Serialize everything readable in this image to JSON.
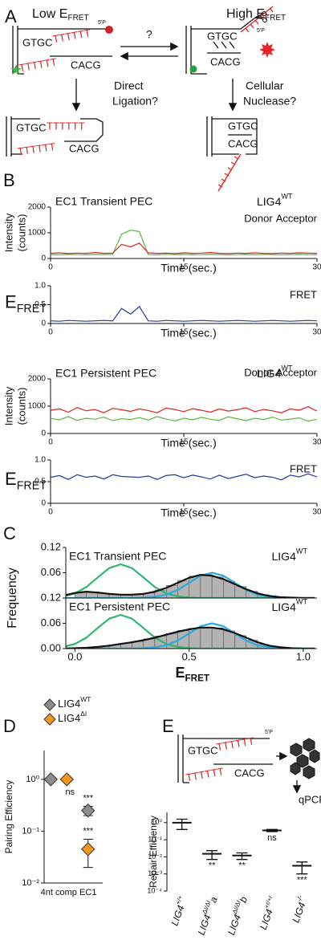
{
  "figure": {
    "panels": {
      "a": {
        "label": "A",
        "low": {
          "text": "Low E",
          "sub": "FRET"
        },
        "high": {
          "text": "High E",
          "sub": "FRET"
        },
        "question": "?",
        "seq_top": "GTGC",
        "seq_tail": "TTTTTT",
        "seq_bottom": "CACG",
        "phosphate": "5'P",
        "left_outcome": [
          "Direct",
          "Ligation?"
        ],
        "right_outcome": [
          "Cellular",
          "Nuclease?"
        ]
      },
      "b": {
        "label": "B"
      },
      "c": {
        "label": "C"
      },
      "d": {
        "label": "D"
      },
      "e": {
        "label": "E",
        "seq_top": "GTGC",
        "seq_tail": "TTTTTT",
        "seq_bottom": "CACG",
        "phosphate": "5'P",
        "assay": "qPCR"
      }
    }
  },
  "chart_data": [
    {
      "type": "trace",
      "title": "EC1 Transient PEC",
      "construct": "LIG4",
      "construct_sup": "WT",
      "y_label": [
        "Intensity",
        "(counts)"
      ],
      "x_label": "Time (sec.)",
      "x": [
        0,
        1,
        2,
        3,
        4,
        5,
        6,
        7,
        8,
        9,
        10,
        11,
        12,
        13,
        14,
        15,
        16,
        17,
        18,
        19,
        20,
        21,
        22,
        23,
        24,
        25,
        26,
        27,
        28,
        29,
        30
      ],
      "xlim": [
        0,
        30
      ],
      "xticks": [
        0,
        15,
        30
      ],
      "ylim": [
        0,
        2000
      ],
      "yticks": [
        0,
        1000,
        2000
      ],
      "series": [
        {
          "name": "Donor",
          "color": "#5cb83c",
          "values": [
            150,
            140,
            160,
            150,
            145,
            155,
            150,
            160,
            950,
            1100,
            1050,
            150,
            140,
            160,
            150,
            155,
            145,
            150,
            160,
            150,
            140,
            150,
            155,
            145,
            160,
            150,
            140,
            150,
            155,
            150,
            145
          ]
        },
        {
          "name": "Acceptor",
          "color": "#e02020",
          "values": [
            200,
            220,
            190,
            210,
            200,
            230,
            200,
            210,
            550,
            450,
            600,
            220,
            200,
            210,
            190,
            220,
            200,
            210,
            230,
            200,
            190,
            210,
            200,
            220,
            200,
            190,
            210,
            200,
            220,
            210,
            200
          ]
        }
      ]
    },
    {
      "type": "trace",
      "y_label": "E",
      "y_label_sub": "FRET",
      "x_label": "Time (sec.)",
      "x": [
        0,
        1,
        2,
        3,
        4,
        5,
        6,
        7,
        8,
        9,
        10,
        11,
        12,
        13,
        14,
        15,
        16,
        17,
        18,
        19,
        20,
        21,
        22,
        23,
        24,
        25,
        26,
        27,
        28,
        29,
        30
      ],
      "xlim": [
        0,
        30
      ],
      "xticks": [
        0,
        15,
        30
      ],
      "ylim": [
        0,
        1
      ],
      "yticks": [
        0,
        0.5,
        {
          "value": 1,
          "label": "1.0"
        }
      ],
      "series": [
        {
          "name": "FRET",
          "color": "#2b3a9c",
          "values": [
            0.07,
            0.06,
            0.08,
            0.07,
            0.06,
            0.07,
            0.08,
            0.07,
            0.4,
            0.25,
            0.45,
            0.07,
            0.06,
            0.08,
            0.07,
            0.06,
            0.07,
            0.08,
            0.07,
            0.06,
            0.07,
            0.08,
            0.07,
            0.06,
            0.07,
            0.08,
            0.07,
            0.06,
            0.07,
            0.08,
            0.07
          ]
        }
      ]
    },
    {
      "type": "trace",
      "title": "EC1 Persistent PEC",
      "construct": "LIG4",
      "construct_sup": "WT",
      "y_label": [
        "Intensity",
        "(counts)"
      ],
      "x_label": "Time (sec.)",
      "x": [
        0,
        1,
        2,
        3,
        4,
        5,
        6,
        7,
        8,
        9,
        10,
        11,
        12,
        13,
        14,
        15,
        16,
        17,
        18,
        19,
        20,
        21,
        22,
        23,
        24,
        25,
        26,
        27,
        28,
        29,
        30
      ],
      "xlim": [
        0,
        30
      ],
      "xticks": [
        0,
        15,
        30
      ],
      "ylim": [
        0,
        2000
      ],
      "yticks": [
        0,
        1000,
        2000
      ],
      "series": [
        {
          "name": "Donor",
          "color": "#5cb83c",
          "values": [
            550,
            500,
            620,
            480,
            560,
            520,
            600,
            470,
            540,
            510,
            580,
            490,
            620,
            530,
            460,
            560,
            500,
            590,
            520,
            480,
            610,
            540,
            470,
            560,
            510,
            600,
            490,
            530,
            570,
            450,
            520
          ]
        },
        {
          "name": "Acceptor",
          "color": "#e02020",
          "values": [
            850,
            900,
            780,
            950,
            830,
            880,
            760,
            920,
            870,
            810,
            900,
            840,
            760,
            930,
            880,
            800,
            910,
            850,
            780,
            900,
            820,
            870,
            940,
            800,
            880,
            830,
            760,
            900,
            850,
            980,
            820
          ]
        }
      ]
    },
    {
      "type": "trace",
      "y_label": "E",
      "y_label_sub": "FRET",
      "x_label": "Time (sec.)",
      "x": [
        0,
        1,
        2,
        3,
        4,
        5,
        6,
        7,
        8,
        9,
        10,
        11,
        12,
        13,
        14,
        15,
        16,
        17,
        18,
        19,
        20,
        21,
        22,
        23,
        24,
        25,
        26,
        27,
        28,
        29,
        30
      ],
      "xlim": [
        0,
        30
      ],
      "xticks": [
        0,
        15,
        30
      ],
      "ylim": [
        0,
        1
      ],
      "yticks": [
        0,
        0.5,
        {
          "value": 1,
          "label": "1.0"
        }
      ],
      "series": [
        {
          "name": "FRET",
          "color": "#2b3a9c",
          "values": [
            0.6,
            0.64,
            0.55,
            0.66,
            0.6,
            0.63,
            0.56,
            0.66,
            0.62,
            0.61,
            0.6,
            0.63,
            0.55,
            0.64,
            0.66,
            0.59,
            0.65,
            0.61,
            0.56,
            0.65,
            0.57,
            0.62,
            0.67,
            0.59,
            0.63,
            0.6,
            0.54,
            0.65,
            0.61,
            0.68,
            0.61
          ]
        }
      ]
    },
    {
      "type": "histogram",
      "title": "EC1 Transient PEC",
      "construct": "LIG4",
      "construct_sup": "WT",
      "y_label": "Frequency",
      "bins": [
        0,
        0.05,
        0.1,
        0.15,
        0.2,
        0.25,
        0.3,
        0.35,
        0.4,
        0.45,
        0.5,
        0.55,
        0.6,
        0.65,
        0.7,
        0.75,
        0.8,
        0.85,
        0.9,
        0.95,
        1
      ],
      "counts": [
        0.014,
        0.014,
        0.011,
        0.009,
        0.008,
        0.009,
        0.012,
        0.019,
        0.03,
        0.042,
        0.052,
        0.056,
        0.05,
        0.04,
        0.027,
        0.016,
        0.008,
        0.003,
        0.001,
        0
      ],
      "bar_color": "#b3b3b3",
      "curve_x": [
        -0.1,
        -0.05,
        0,
        0.05,
        0.1,
        0.15,
        0.2,
        0.25,
        0.3,
        0.35,
        0.4,
        0.45,
        0.5,
        0.55,
        0.6,
        0.65,
        0.7,
        0.75,
        0.8,
        0.85,
        0.9,
        0.95,
        1,
        1.05
      ],
      "curves": [
        {
          "color": "#2bb673",
          "values": [
            0.001,
            0.004,
            0.011,
            0.026,
            0.049,
            0.071,
            0.08,
            0.071,
            0.049,
            0.026,
            0.011,
            0.004,
            0.001,
            0,
            0,
            0,
            0,
            0,
            0,
            0,
            0,
            0,
            0,
            0
          ]
        },
        {
          "color": "#29abe2",
          "values": [
            0,
            0,
            0,
            0,
            0,
            0,
            0,
            0,
            0.001,
            0.003,
            0.008,
            0.019,
            0.036,
            0.053,
            0.06,
            0.053,
            0.036,
            0.019,
            0.008,
            0.003,
            0.001,
            0,
            0,
            0
          ]
        },
        {
          "color": "#111111",
          "values": [
            0.002,
            0.006,
            0.012,
            0.015,
            0.013,
            0.01,
            0.008,
            0.008,
            0.01,
            0.015,
            0.024,
            0.036,
            0.048,
            0.055,
            0.053,
            0.045,
            0.033,
            0.021,
            0.011,
            0.005,
            0.002,
            0.001,
            0,
            0
          ]
        }
      ],
      "xlim": [
        -0.04,
        1.06
      ],
      "ylim": [
        0,
        0.12
      ],
      "yticks": [
        {
          "value": 0.06,
          "label": "0.06"
        },
        {
          "value": 0.12,
          "label": "0.12"
        }
      ]
    },
    {
      "type": "histogram",
      "title": "EC1 Persistent PEC",
      "construct": "LIG4",
      "construct_sup": "WT",
      "x_label": "E",
      "x_label_sub": "FRET",
      "bins": [
        0,
        0.05,
        0.1,
        0.15,
        0.2,
        0.25,
        0.3,
        0.35,
        0.4,
        0.45,
        0.5,
        0.55,
        0.6,
        0.65,
        0.7,
        0.75,
        0.8,
        0.85,
        0.9,
        0.95,
        1
      ],
      "counts": [
        0.001,
        0.003,
        0.005,
        0.009,
        0.013,
        0.017,
        0.023,
        0.03,
        0.036,
        0.043,
        0.048,
        0.05,
        0.049,
        0.042,
        0.031,
        0.02,
        0.01,
        0.004,
        0.002,
        0.001
      ],
      "bar_color": "#b3b3b3",
      "curve_x": [
        -0.1,
        -0.05,
        0,
        0.05,
        0.1,
        0.15,
        0.2,
        0.25,
        0.3,
        0.35,
        0.4,
        0.45,
        0.5,
        0.55,
        0.6,
        0.65,
        0.7,
        0.75,
        0.8,
        0.85,
        0.9,
        0.95,
        1,
        1.05
      ],
      "curves": [
        {
          "color": "#2bb673",
          "values": [
            0.001,
            0.004,
            0.011,
            0.026,
            0.049,
            0.071,
            0.08,
            0.071,
            0.049,
            0.026,
            0.011,
            0.004,
            0.001,
            0,
            0,
            0,
            0,
            0,
            0,
            0,
            0,
            0,
            0,
            0
          ]
        },
        {
          "color": "#29abe2",
          "values": [
            0,
            0,
            0,
            0,
            0,
            0,
            0,
            0,
            0.001,
            0.003,
            0.008,
            0.019,
            0.036,
            0.053,
            0.06,
            0.053,
            0.036,
            0.019,
            0.008,
            0.003,
            0.001,
            0,
            0,
            0
          ]
        },
        {
          "color": "#111111",
          "values": [
            0,
            0,
            0.001,
            0.002,
            0.004,
            0.007,
            0.011,
            0.015,
            0.02,
            0.026,
            0.033,
            0.04,
            0.046,
            0.05,
            0.05,
            0.046,
            0.037,
            0.026,
            0.015,
            0.007,
            0.003,
            0.001,
            0,
            0
          ]
        }
      ],
      "xlim": [
        -0.04,
        1.06
      ],
      "xticks": [
        {
          "value": 0,
          "label": "0.0"
        },
        0.5,
        {
          "value": 1,
          "label": "1.0"
        }
      ],
      "ylim": [
        0,
        0.12
      ],
      "yticks": [
        {
          "value": 0,
          "label": "0.00"
        },
        {
          "value": 0.06,
          "label": "0.06"
        },
        {
          "value": 0.12,
          "label": "0.12"
        }
      ]
    },
    {
      "type": "dot",
      "categories": [
        "4nt comp",
        "EC1"
      ],
      "y_label": "Pairing Efficiency",
      "log_y": true,
      "ylim": [
        0.01,
        3.6
      ],
      "yticks": [
        {
          "value": 1,
          "label": "10⁰"
        },
        {
          "value": 0.1,
          "label": "10⁻¹"
        },
        {
          "value": 0.01,
          "label": "10⁻²"
        }
      ],
      "series": [
        {
          "name": "LIG4",
          "name_sup": "WT",
          "color": "#8c8c8c",
          "values": [
            1,
            0.25
          ],
          "errors": [
            0,
            0.05
          ],
          "annotations": [
            null,
            "***"
          ]
        },
        {
          "name": "LIG4",
          "name_sup": "ΔI",
          "color": "#f7941d",
          "values": [
            1,
            0.045
          ],
          "errors": [
            0,
            0.025
          ],
          "annotations": [
            "ns",
            "***"
          ]
        }
      ]
    },
    {
      "type": "errorbar",
      "y_label": "Repair Efficiency",
      "log_y": true,
      "ylim": [
        0.0001,
        4
      ],
      "yticks": [
        {
          "value": 1,
          "label": "10⁰"
        },
        {
          "value": 0.1,
          "label": "10⁻¹"
        },
        {
          "value": 0.01,
          "label": "10⁻²"
        },
        {
          "value": 0.001,
          "label": "10⁻³"
        },
        {
          "value": 0.0001,
          "label": "10⁻⁴"
        }
      ],
      "categories": [
        {
          "base": "LIG4",
          "sup": "+/+"
        },
        {
          "base": "LIG4",
          "sup": "ΔI/ΔI",
          "suffix": "a"
        },
        {
          "base": "LIG4",
          "sup": "ΔI/ΔI",
          "suffix": "b"
        },
        {
          "base": "LIG4",
          "sup": "+r/+r"
        },
        {
          "base": "LIG4",
          "sup": "-/-"
        }
      ],
      "values": [
        1,
        0.015,
        0.012,
        0.35,
        0.003
      ],
      "errors": [
        0.6,
        0.008,
        0.005,
        0.05,
        0.002
      ],
      "annotations": [
        null,
        "**",
        "**",
        "ns",
        "***"
      ],
      "color": "#111111"
    }
  ]
}
